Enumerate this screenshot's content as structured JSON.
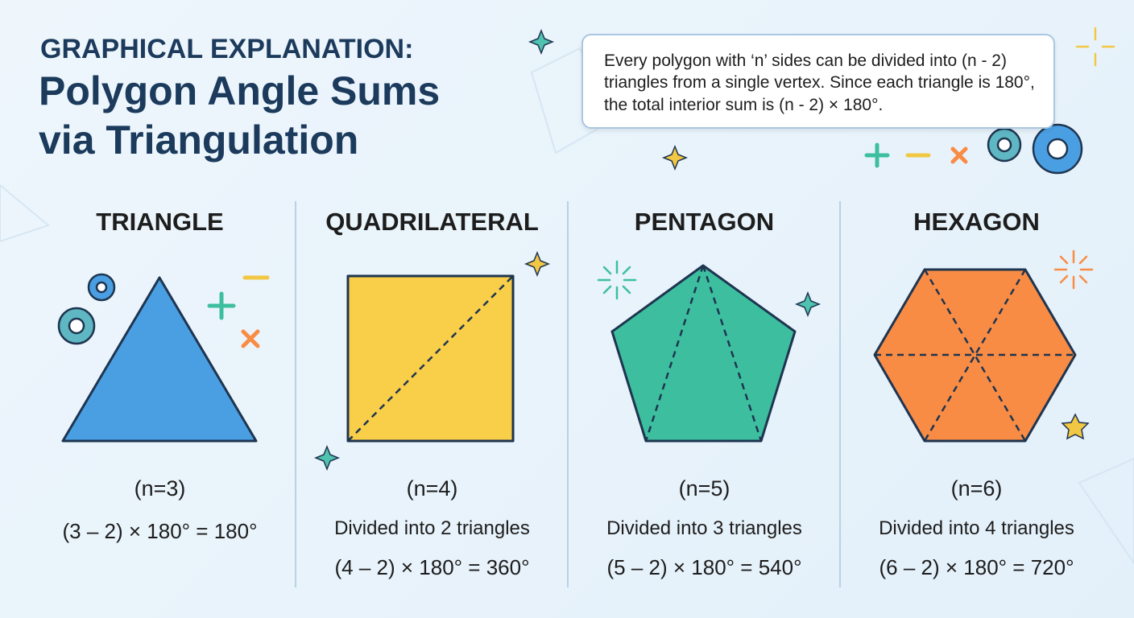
{
  "header": {
    "kicker": "GRAPHICAL EXPLANATION:",
    "title_lines": [
      "Polygon Angle Sums",
      "via Triangulation"
    ]
  },
  "info": "Every polygon with ‘n’ sides can be divided into (n - 2) triangles from a single vertex. Since each triangle is 180°, the total interior sum is (n - 2) × 180°.",
  "panels": [
    {
      "name": "TRIANGLE",
      "n_label": "(n=3)",
      "formula": "(3 – 2) × 180° = 180°"
    },
    {
      "name": "QUADRILATERAL",
      "n_label": "(n=4)",
      "divided": "Divided into 2 triangles",
      "formula": "(4 – 2) × 180° = 360°"
    },
    {
      "name": "PENTAGON",
      "n_label": "(n=5)",
      "divided": "Divided into 3 triangles",
      "formula": "(5 – 2) × 180° = 540°"
    },
    {
      "name": "HEXAGON",
      "n_label": "(n=6)",
      "divided": "Divided into 4 triangles",
      "formula": "(6 – 2) × 180° = 720°"
    }
  ]
}
